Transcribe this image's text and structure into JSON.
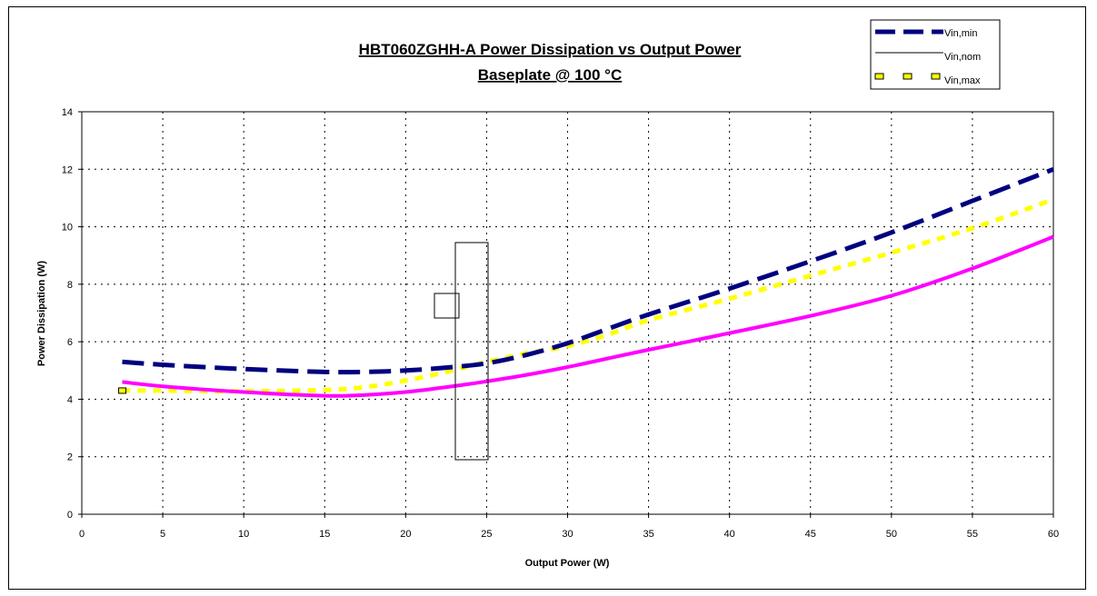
{
  "colors": {
    "vin_min": "#000080",
    "vin_nom": "#ff00ff",
    "vin_max": "#ffff00",
    "grid": "#000000",
    "background": "#ffffff"
  },
  "chart_data": {
    "type": "line",
    "title": "HBT060ZGHH-A Power Dissipation vs Output Power",
    "subtitle": "Baseplate @ 100 °C",
    "xlabel": "Output Power (W)",
    "ylabel": "Power Dissipation (W)",
    "xlim": [
      0,
      60
    ],
    "ylim": [
      0,
      14
    ],
    "xticks": [
      0,
      5,
      10,
      15,
      20,
      25,
      30,
      35,
      40,
      45,
      50,
      55,
      60
    ],
    "yticks": [
      0,
      2,
      4,
      6,
      8,
      10,
      12,
      14
    ],
    "grid": true,
    "legend_position": "top-right",
    "series": [
      {
        "name": "Vin,min",
        "style": "dashed-thick",
        "x": [
          2.5,
          5,
          10,
          15,
          17.5,
          20,
          22.5,
          25,
          27.5,
          30,
          32.5,
          35,
          40,
          45,
          50,
          55,
          60
        ],
        "y": [
          5.3,
          5.2,
          5.05,
          4.95,
          4.95,
          5.0,
          5.1,
          5.25,
          5.55,
          5.95,
          6.45,
          6.95,
          7.85,
          8.8,
          9.8,
          10.9,
          12.0
        ]
      },
      {
        "name": "Vin,nom",
        "style": "solid-thick",
        "x": [
          2.5,
          5,
          10,
          15,
          17.5,
          20,
          22.5,
          25,
          27.5,
          30,
          32.5,
          35,
          40,
          45,
          50,
          55,
          60
        ],
        "y": [
          4.6,
          4.45,
          4.25,
          4.12,
          4.15,
          4.25,
          4.42,
          4.62,
          4.85,
          5.12,
          5.42,
          5.72,
          6.3,
          6.9,
          7.6,
          8.55,
          9.65
        ]
      },
      {
        "name": "Vin,max",
        "style": "dotted-thick",
        "x": [
          2.5,
          5,
          10,
          15,
          17.5,
          20,
          22.5,
          25,
          27.5,
          30,
          32.5,
          35,
          40,
          45,
          50,
          55,
          60
        ],
        "y": [
          4.3,
          4.3,
          4.28,
          4.32,
          4.42,
          4.65,
          4.95,
          5.3,
          5.6,
          5.85,
          6.25,
          6.75,
          7.5,
          8.3,
          9.1,
          9.95,
          10.95
        ]
      }
    ]
  }
}
